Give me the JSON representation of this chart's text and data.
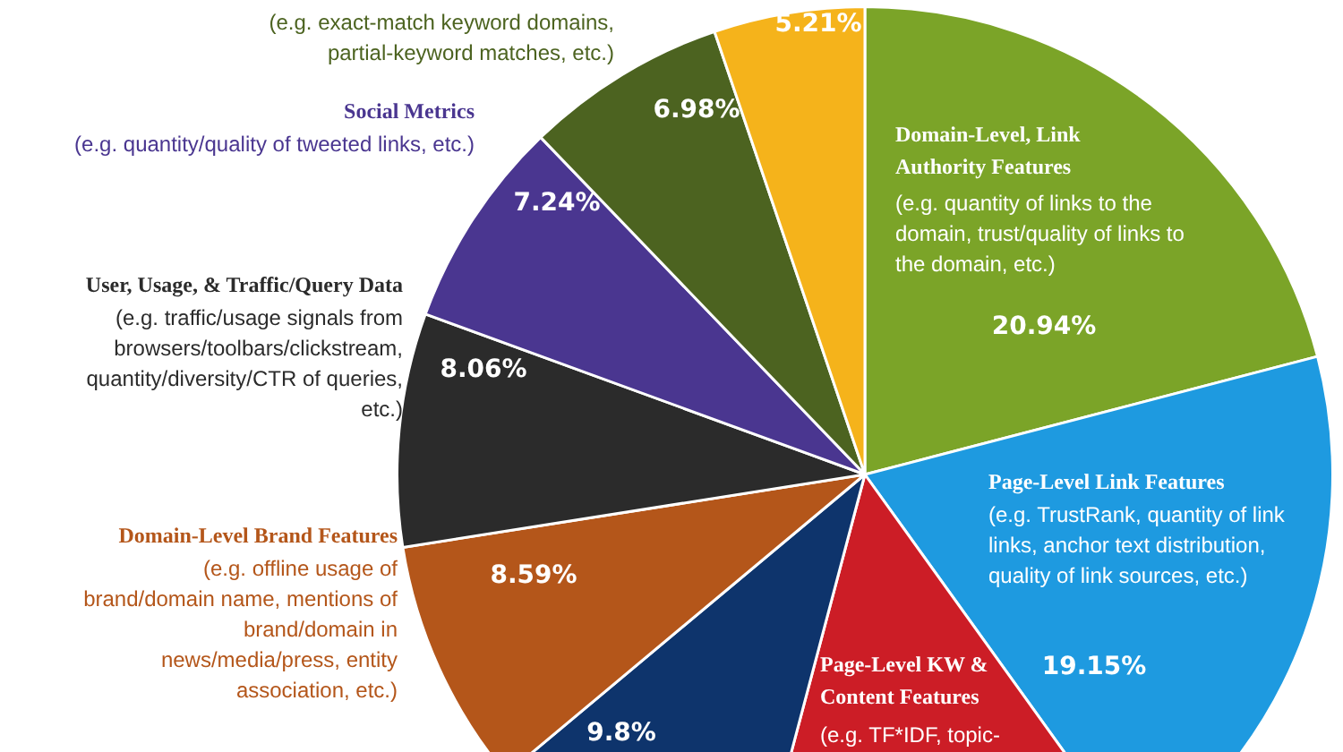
{
  "chart_data": {
    "type": "pie",
    "categories": [
      "Domain-Level, Link Authority Features",
      "Page-Level Link Features",
      "Page-Level KW & Content Features",
      null,
      "Domain-Level Brand Features",
      "User, Usage, & Traffic/Query Data",
      "Social Metrics",
      null,
      null
    ],
    "values": [
      20.94,
      19.15,
      14.03,
      9.8,
      8.59,
      8.06,
      7.24,
      6.98,
      5.21
    ],
    "value_labels": [
      "20.94%",
      "19.15%",
      null,
      "9.8%",
      "8.59%",
      "8.06%",
      "7.24%",
      "6.98%",
      "5.21%"
    ],
    "colors": [
      "#7ba428",
      "#1e9ae0",
      "#cc1d26",
      "#0e346c",
      "#b4561a",
      "#2b2b2b",
      "#4a3690",
      "#4c6320",
      "#f5b31b"
    ],
    "annotations": [
      "(e.g. quantity of links to the domain, trust/quality of links to the domain, etc.)",
      "(e.g. TrustRank, quantity of link links, anchor text distribution, quality of link sources, etc.)",
      "(e.g. TF*IDF, topic-",
      "(e.g. offline usage of brand/domain name, mentions of brand/domain in news/media/press, entity association, etc.)",
      "(e.g. traffic/usage signals from browsers/toolbars/clickstream, quantity/diversity/CTR of queries, etc.)",
      "(e.g. quantity/quality of tweeted links, etc.)",
      "(e.g. exact-match keyword domains, partial-keyword matches, etc.)"
    ],
    "legend": false
  }
}
